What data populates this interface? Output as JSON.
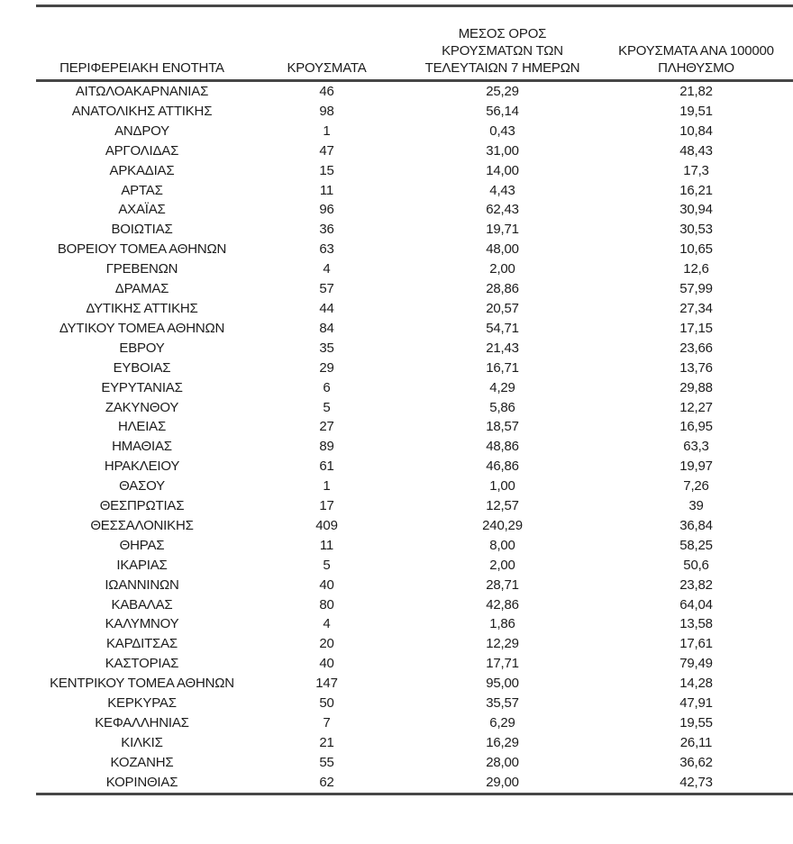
{
  "table": {
    "headers": [
      "ΠΕΡΙΦΕΡΕΙΑΚΗ ΕΝΟΤΗΤΑ",
      "ΚΡΟΥΣΜΑΤΑ",
      "ΜΕΣΟΣ ΟΡΟΣ\nΚΡΟΥΣΜΑΤΩΝ ΤΩΝ\nΤΕΛΕΥΤΑΙΩΝ 7 ΗΜΕΡΩΝ",
      "ΚΡΟΥΣΜΑΤΑ ΑΝΑ 100000\nΠΛΗΘΥΣΜΟ"
    ],
    "rows": [
      [
        "ΑΙΤΩΛΟΑΚΑΡΝΑΝΙΑΣ",
        "46",
        "25,29",
        "21,82"
      ],
      [
        "ΑΝΑΤΟΛΙΚΗΣ ΑΤΤΙΚΗΣ",
        "98",
        "56,14",
        "19,51"
      ],
      [
        "ΑΝΔΡΟΥ",
        "1",
        "0,43",
        "10,84"
      ],
      [
        "ΑΡΓΟΛΙΔΑΣ",
        "47",
        "31,00",
        "48,43"
      ],
      [
        "ΑΡΚΑΔΙΑΣ",
        "15",
        "14,00",
        "17,3"
      ],
      [
        "ΑΡΤΑΣ",
        "11",
        "4,43",
        "16,21"
      ],
      [
        "ΑΧΑΪΑΣ",
        "96",
        "62,43",
        "30,94"
      ],
      [
        "ΒΟΙΩΤΙΑΣ",
        "36",
        "19,71",
        "30,53"
      ],
      [
        "ΒΟΡΕΙΟΥ ΤΟΜΕΑ ΑΘΗΝΩΝ",
        "63",
        "48,00",
        "10,65"
      ],
      [
        "ΓΡΕΒΕΝΩΝ",
        "4",
        "2,00",
        "12,6"
      ],
      [
        "ΔΡΑΜΑΣ",
        "57",
        "28,86",
        "57,99"
      ],
      [
        "ΔΥΤΙΚΗΣ ΑΤΤΙΚΗΣ",
        "44",
        "20,57",
        "27,34"
      ],
      [
        "ΔΥΤΙΚΟΥ ΤΟΜΕΑ ΑΘΗΝΩΝ",
        "84",
        "54,71",
        "17,15"
      ],
      [
        "ΕΒΡΟΥ",
        "35",
        "21,43",
        "23,66"
      ],
      [
        "ΕΥΒΟΙΑΣ",
        "29",
        "16,71",
        "13,76"
      ],
      [
        "ΕΥΡΥΤΑΝΙΑΣ",
        "6",
        "4,29",
        "29,88"
      ],
      [
        "ΖΑΚΥΝΘΟΥ",
        "5",
        "5,86",
        "12,27"
      ],
      [
        "ΗΛΕΙΑΣ",
        "27",
        "18,57",
        "16,95"
      ],
      [
        "ΗΜΑΘΙΑΣ",
        "89",
        "48,86",
        "63,3"
      ],
      [
        "ΗΡΑΚΛΕΙΟΥ",
        "61",
        "46,86",
        "19,97"
      ],
      [
        "ΘΑΣΟΥ",
        "1",
        "1,00",
        "7,26"
      ],
      [
        "ΘΕΣΠΡΩΤΙΑΣ",
        "17",
        "12,57",
        "39"
      ],
      [
        "ΘΕΣΣΑΛΟΝΙΚΗΣ",
        "409",
        "240,29",
        "36,84"
      ],
      [
        "ΘΗΡΑΣ",
        "11",
        "8,00",
        "58,25"
      ],
      [
        "ΙΚΑΡΙΑΣ",
        "5",
        "2,00",
        "50,6"
      ],
      [
        "ΙΩΑΝΝΙΝΩΝ",
        "40",
        "28,71",
        "23,82"
      ],
      [
        "ΚΑΒΑΛΑΣ",
        "80",
        "42,86",
        "64,04"
      ],
      [
        "ΚΑΛΥΜΝΟΥ",
        "4",
        "1,86",
        "13,58"
      ],
      [
        "ΚΑΡΔΙΤΣΑΣ",
        "20",
        "12,29",
        "17,61"
      ],
      [
        "ΚΑΣΤΟΡΙΑΣ",
        "40",
        "17,71",
        "79,49"
      ],
      [
        "ΚΕΝΤΡΙΚΟΥ ΤΟΜΕΑ ΑΘΗΝΩΝ",
        "147",
        "95,00",
        "14,28"
      ],
      [
        "ΚΕΡΚΥΡΑΣ",
        "50",
        "35,57",
        "47,91"
      ],
      [
        "ΚΕΦΑΛΛΗΝΙΑΣ",
        "7",
        "6,29",
        "19,55"
      ],
      [
        "ΚΙΛΚΙΣ",
        "21",
        "16,29",
        "26,11"
      ],
      [
        "ΚΟΖΑΝΗΣ",
        "55",
        "28,00",
        "36,62"
      ],
      [
        "ΚΟΡΙΝΘΙΑΣ",
        "62",
        "29,00",
        "42,73"
      ]
    ],
    "colors": {
      "text": "#1c1c1c",
      "rule": "#474747",
      "background": "#ffffff"
    }
  }
}
